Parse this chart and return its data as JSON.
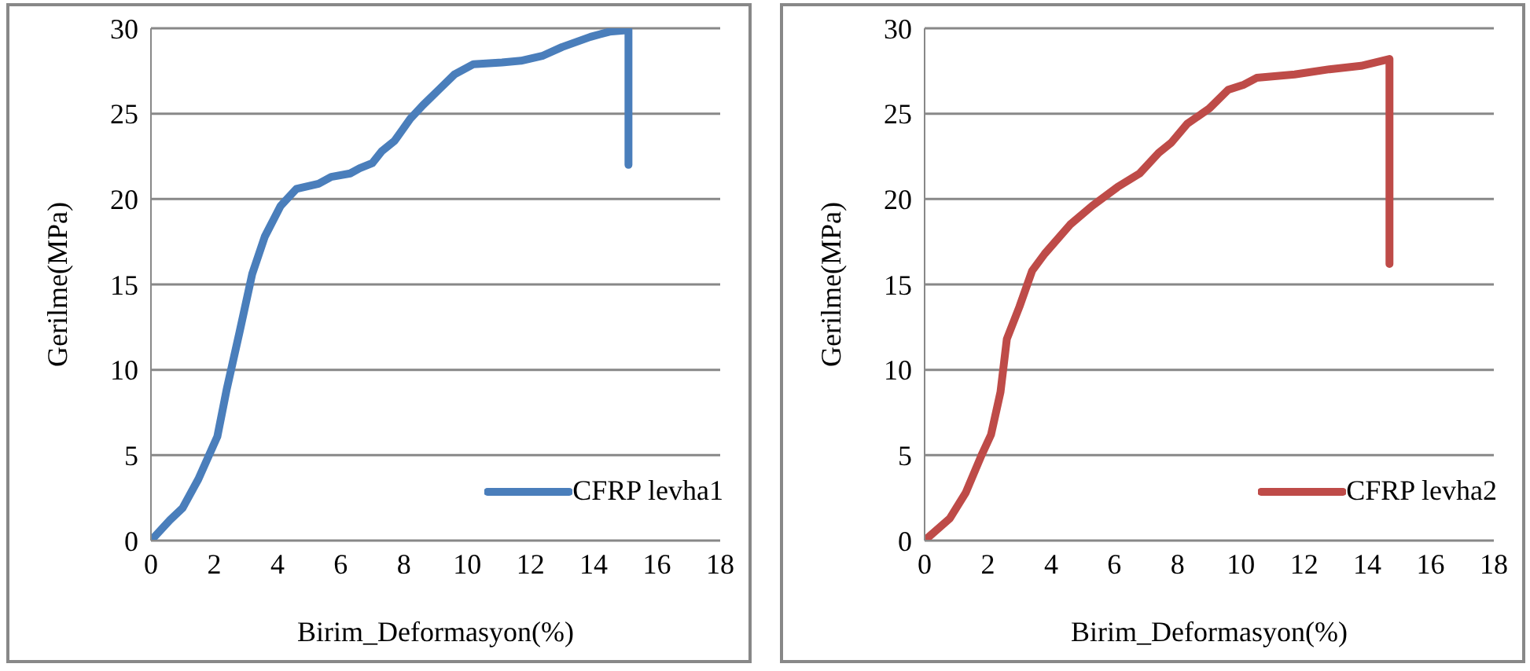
{
  "chart_data": [
    {
      "type": "line",
      "xlabel": "Birim_Deformasyon(%)",
      "ylabel": "Gerilme(MPa)",
      "xlim": [
        0,
        18
      ],
      "xticks": [
        0,
        2,
        4,
        6,
        8,
        10,
        12,
        14,
        16,
        18
      ],
      "ylim": [
        0,
        30
      ],
      "yticks": [
        0,
        5,
        10,
        15,
        20,
        25,
        30
      ],
      "grid": "y",
      "legend": "bottom right",
      "marker": "none",
      "line_style": "solid",
      "series": [
        {
          "name": "CFRP levha1",
          "color": "#4a7ebb",
          "x": [
            0,
            0.6,
            1.0,
            1.5,
            2.1,
            2.4,
            2.8,
            3.2,
            3.6,
            4.1,
            4.6,
            5.3,
            5.7,
            6.3,
            6.6,
            7.0,
            7.3,
            7.7,
            8.2,
            8.6,
            9.1,
            9.6,
            10.2,
            11.1,
            11.7,
            12.4,
            13.0,
            13.9,
            14.5,
            15.1,
            15.1
          ],
          "values": [
            0,
            1.2,
            1.9,
            3.6,
            6.1,
            8.9,
            12.2,
            15.6,
            17.8,
            19.6,
            20.6,
            20.9,
            21.3,
            21.5,
            21.8,
            22.1,
            22.8,
            23.4,
            24.7,
            25.5,
            26.4,
            27.3,
            27.9,
            28.0,
            28.1,
            28.4,
            28.9,
            29.5,
            29.8,
            29.9,
            22
          ]
        }
      ]
    },
    {
      "type": "line",
      "xlabel": "Birim_Deformasyon(%)",
      "ylabel": "Gerilme(MPa)",
      "xlim": [
        0,
        18
      ],
      "xticks": [
        0,
        2,
        4,
        6,
        8,
        10,
        12,
        14,
        16,
        18
      ],
      "ylim": [
        0,
        30
      ],
      "yticks": [
        0,
        5,
        10,
        15,
        20,
        25,
        30
      ],
      "grid": "y",
      "legend": "bottom right",
      "marker": "none",
      "line_style": "solid",
      "series": [
        {
          "name": "CFRP levha2",
          "color": "#be4b48",
          "x": [
            0,
            0.8,
            1.3,
            1.8,
            2.1,
            2.4,
            2.6,
            3.0,
            3.4,
            3.8,
            4.6,
            5.3,
            6.1,
            6.8,
            7.4,
            7.8,
            8.3,
            9.0,
            9.6,
            10.1,
            10.5,
            11.7,
            12.8,
            13.8,
            14.7,
            14.7
          ],
          "values": [
            0,
            1.3,
            2.8,
            5.0,
            6.2,
            8.7,
            11.8,
            13.7,
            15.8,
            16.8,
            18.5,
            19.6,
            20.7,
            21.5,
            22.7,
            23.3,
            24.4,
            25.3,
            26.4,
            26.7,
            27.1,
            27.3,
            27.6,
            27.8,
            28.2,
            16.2
          ]
        }
      ]
    }
  ]
}
